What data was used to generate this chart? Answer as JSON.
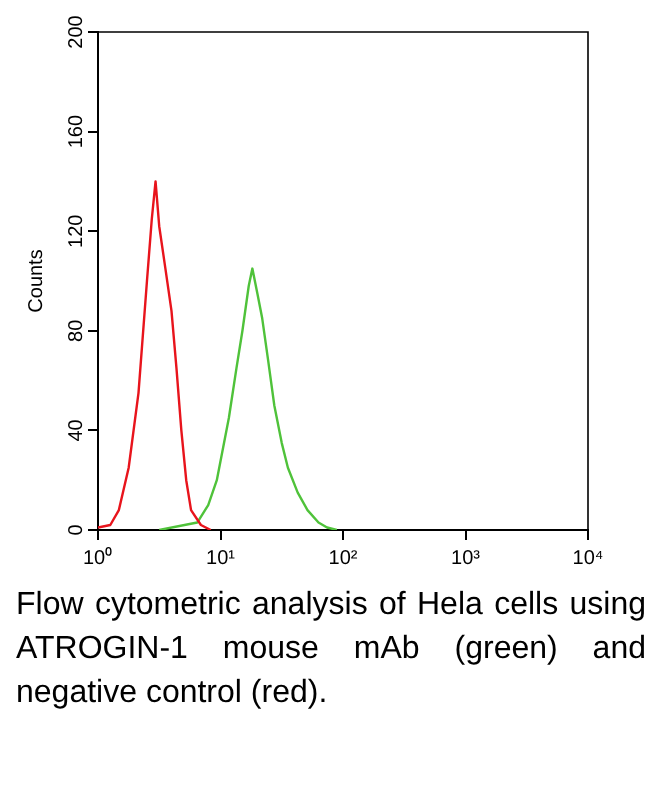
{
  "chart_data": {
    "type": "line",
    "ylabel": "Counts",
    "log": "x",
    "grid": false,
    "legend": false,
    "marker": "none",
    "xlim": [
      1,
      10000
    ],
    "xticks": [
      {
        "value": 1,
        "label": "10⁰"
      },
      {
        "value": 10,
        "label": "10¹"
      },
      {
        "value": 100,
        "label": "10²"
      },
      {
        "value": 1000,
        "label": "10³"
      },
      {
        "value": 10000,
        "label": "10⁴"
      }
    ],
    "ylim": [
      0,
      200
    ],
    "yticks": [
      0,
      40,
      80,
      120,
      160,
      200
    ],
    "series": [
      {
        "color": "#e8141c",
        "x": [
          1,
          1.26,
          1.48,
          1.78,
          2.14,
          2.51,
          2.75,
          2.95,
          3.16,
          3.55,
          3.98,
          4.37,
          4.79,
          5.25,
          5.75,
          6.92,
          8.32
        ],
        "values": [
          1,
          2,
          8,
          25,
          55,
          100,
          125,
          140,
          122,
          105,
          88,
          65,
          40,
          20,
          8,
          2,
          0
        ]
      },
      {
        "color": "#4fc23a",
        "x": [
          3.16,
          6.46,
          7.94,
          9.33,
          11.7,
          13.5,
          15.1,
          17.0,
          18.2,
          20.0,
          21.9,
          24.5,
          27.5,
          31.6,
          35.5,
          42.7,
          51.3,
          63.1,
          74.1,
          89.1
        ],
        "values": [
          0,
          3,
          10,
          20,
          45,
          65,
          80,
          98,
          105,
          95,
          85,
          68,
          50,
          35,
          25,
          15,
          8,
          3,
          1,
          0
        ]
      }
    ],
    "annotations": [
      "Flow cytometric analysis of Hela cells using ATROGIN-1 mouse mAb (green) and negative control (red)."
    ]
  }
}
